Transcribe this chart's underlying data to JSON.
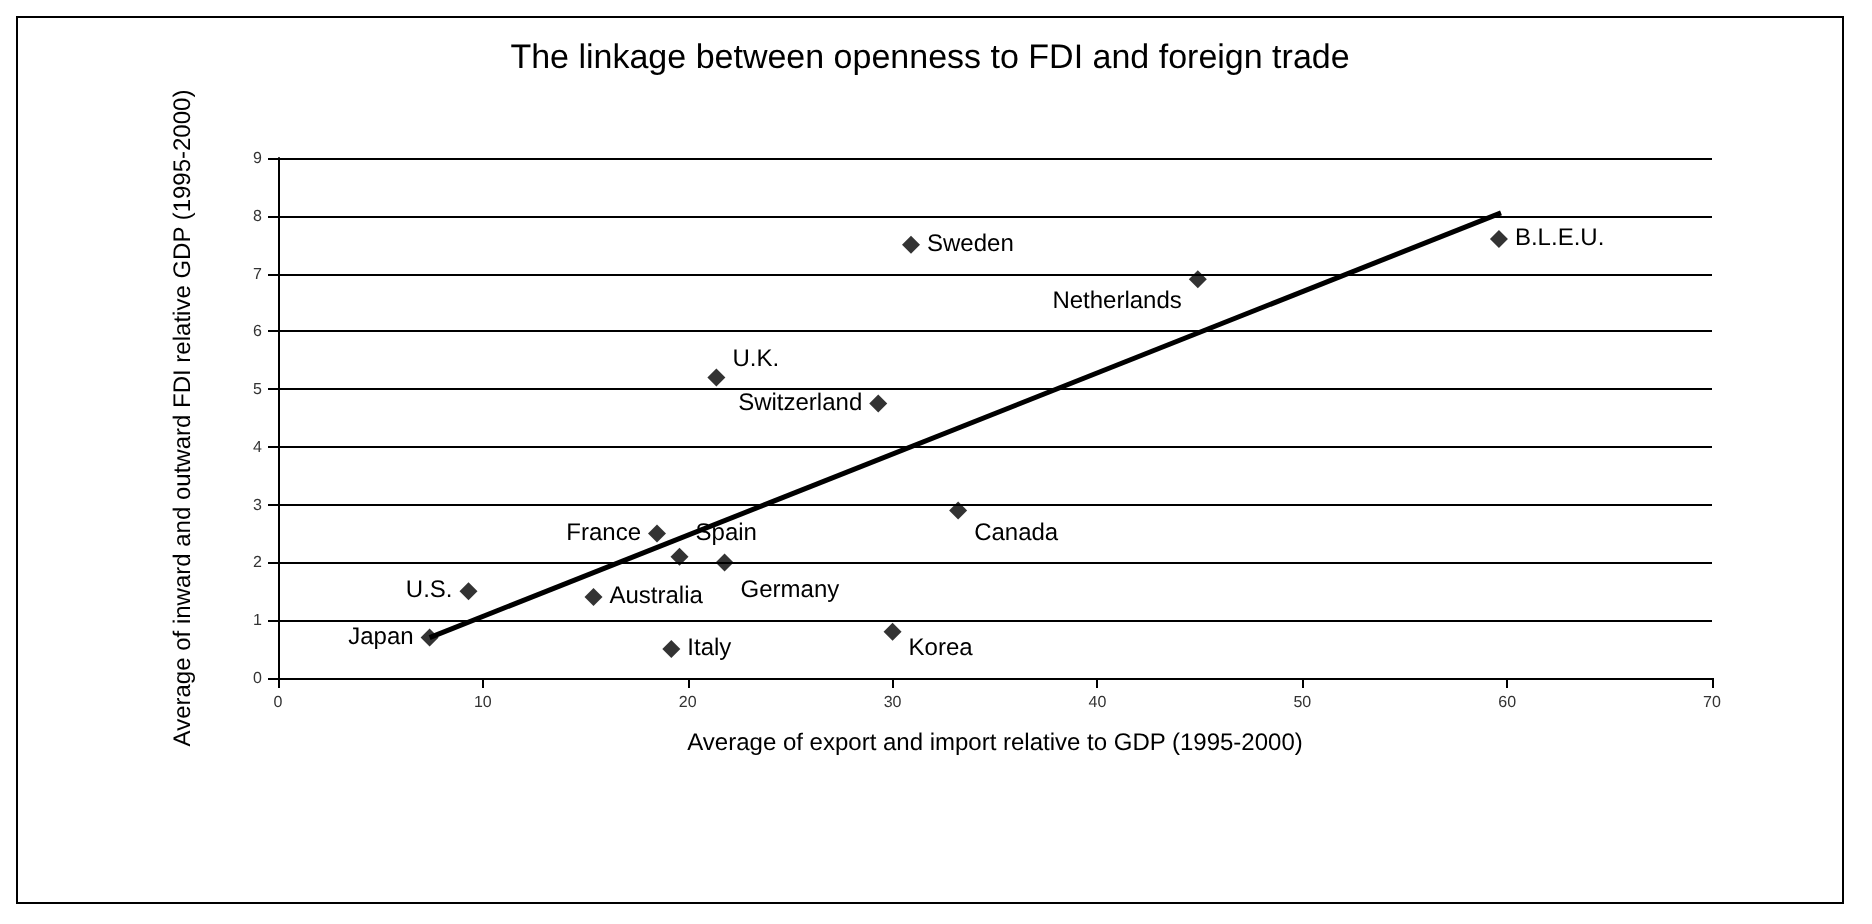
{
  "chart_data": {
    "type": "scatter",
    "title": "The linkage between openness to FDI and foreign trade",
    "xlabel": "Average of export and import relative to GDP (1995-2000)",
    "ylabel": "Average of inward and outward FDI relative GDP (1995-2000)",
    "series": [
      {
        "color": "#000000",
        "marker": "diamond",
        "x": [
          7.4,
          9.3,
          15.4,
          18.5,
          19.6,
          21.8,
          19.2,
          21.4,
          29.3,
          30.9,
          30.0,
          33.2,
          44.9,
          59.6
        ],
        "values": [
          0.7,
          1.5,
          1.4,
          2.5,
          2.1,
          2.0,
          0.5,
          5.2,
          4.75,
          7.5,
          0.8,
          2.9,
          6.9,
          7.6
        ]
      },
      {
        "type": "line",
        "color": "#000000",
        "line_style": "solid",
        "x": [
          7.4,
          59.7
        ],
        "values": [
          0.7,
          8.05
        ]
      }
    ],
    "annotations": [
      {
        "text": "Japan",
        "x": 7.4,
        "y": 0.7
      },
      {
        "text": "U.S.",
        "x": 9.3,
        "y": 1.5
      },
      {
        "text": "Australia",
        "x": 15.4,
        "y": 1.4
      },
      {
        "text": "France",
        "x": 18.5,
        "y": 2.5
      },
      {
        "text": "Spain",
        "x": 19.6,
        "y": 2.1
      },
      {
        "text": "Germany",
        "x": 21.8,
        "y": 2.0
      },
      {
        "text": "Italy",
        "x": 19.2,
        "y": 0.5
      },
      {
        "text": "U.K.",
        "x": 21.4,
        "y": 5.2
      },
      {
        "text": "Switzerland",
        "x": 29.3,
        "y": 4.75
      },
      {
        "text": "Sweden",
        "x": 30.9,
        "y": 7.5
      },
      {
        "text": "Korea",
        "x": 30.0,
        "y": 0.8
      },
      {
        "text": "Canada",
        "x": 33.2,
        "y": 2.9
      },
      {
        "text": "Netherlands",
        "x": 44.9,
        "y": 6.9
      },
      {
        "text": "B.L.E.U.",
        "x": 59.6,
        "y": 7.6
      }
    ],
    "xlim": [
      0,
      70
    ],
    "xticks": [
      0,
      10,
      20,
      30,
      40,
      50,
      60,
      70
    ],
    "ylim": [
      0,
      9
    ],
    "yticks": [
      0,
      1,
      2,
      3,
      4,
      5,
      6,
      7,
      8,
      9
    ],
    "grid": "y"
  }
}
